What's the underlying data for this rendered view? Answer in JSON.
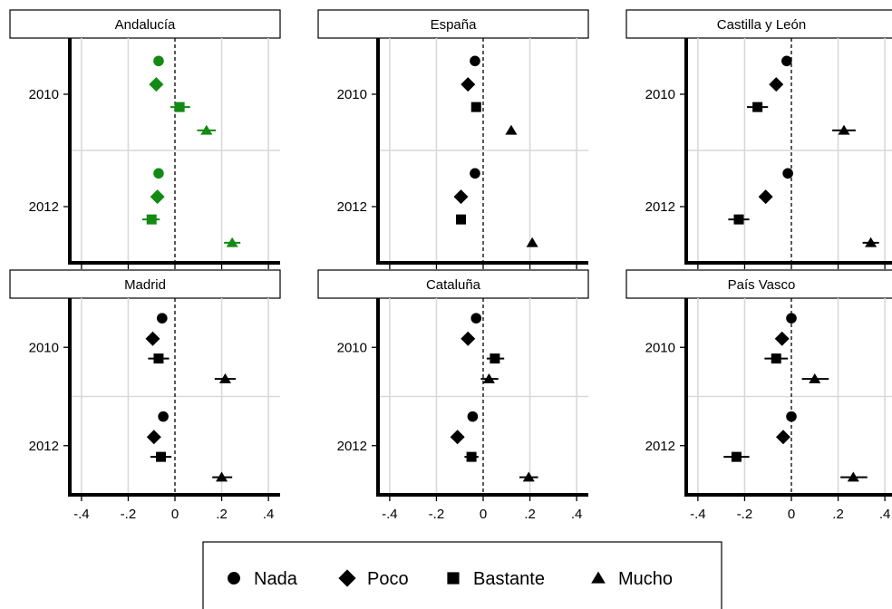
{
  "chart_data": {
    "type": "scatter",
    "subtype": "coefficient-plot-with-confidence-intervals",
    "xlim": [
      -0.45,
      0.45
    ],
    "x_ticks": [
      -0.4,
      -0.2,
      0,
      0.2,
      0.4
    ],
    "x_tick_labels": [
      "-.4",
      "-.2",
      "0",
      ".2",
      ".4"
    ],
    "y_categories": [
      "2010",
      "2012"
    ],
    "reference_line_x": 0,
    "grid": true,
    "legend_position": "bottom",
    "series_styles": [
      {
        "name": "Nada",
        "marker": "circle"
      },
      {
        "name": "Poco",
        "marker": "diamond"
      },
      {
        "name": "Bastante",
        "marker": "square"
      },
      {
        "name": "Mucho",
        "marker": "triangle"
      }
    ],
    "panels": [
      {
        "title": "Andalucía",
        "color": "#138A13",
        "points": [
          {
            "year": "2010",
            "series": "Nada",
            "est": -0.07,
            "lo": -0.075,
            "hi": -0.065
          },
          {
            "year": "2010",
            "series": "Poco",
            "est": -0.08,
            "lo": -0.085,
            "hi": -0.075
          },
          {
            "year": "2010",
            "series": "Bastante",
            "est": 0.02,
            "lo": -0.02,
            "hi": 0.065
          },
          {
            "year": "2010",
            "series": "Mucho",
            "est": 0.135,
            "lo": 0.095,
            "hi": 0.175
          },
          {
            "year": "2012",
            "series": "Nada",
            "est": -0.07,
            "lo": -0.075,
            "hi": -0.065
          },
          {
            "year": "2012",
            "series": "Poco",
            "est": -0.075,
            "lo": -0.08,
            "hi": -0.07
          },
          {
            "year": "2012",
            "series": "Bastante",
            "est": -0.1,
            "lo": -0.14,
            "hi": -0.065
          },
          {
            "year": "2012",
            "series": "Mucho",
            "est": 0.245,
            "lo": 0.21,
            "hi": 0.28
          }
        ]
      },
      {
        "title": "España",
        "color": "#000000",
        "points": [
          {
            "year": "2010",
            "series": "Nada",
            "est": -0.035,
            "lo": -0.04,
            "hi": -0.03
          },
          {
            "year": "2010",
            "series": "Poco",
            "est": -0.065,
            "lo": -0.07,
            "hi": -0.06
          },
          {
            "year": "2010",
            "series": "Bastante",
            "est": -0.03,
            "lo": -0.04,
            "hi": -0.02
          },
          {
            "year": "2010",
            "series": "Mucho",
            "est": 0.12,
            "lo": 0.11,
            "hi": 0.13
          },
          {
            "year": "2012",
            "series": "Nada",
            "est": -0.035,
            "lo": -0.04,
            "hi": -0.03
          },
          {
            "year": "2012",
            "series": "Poco",
            "est": -0.095,
            "lo": -0.1,
            "hi": -0.09
          },
          {
            "year": "2012",
            "series": "Bastante",
            "est": -0.095,
            "lo": -0.1,
            "hi": -0.09
          },
          {
            "year": "2012",
            "series": "Mucho",
            "est": 0.21,
            "lo": 0.205,
            "hi": 0.215
          }
        ]
      },
      {
        "title": "Castilla y León",
        "color": "#000000",
        "points": [
          {
            "year": "2010",
            "series": "Nada",
            "est": -0.02,
            "lo": -0.025,
            "hi": -0.015
          },
          {
            "year": "2010",
            "series": "Poco",
            "est": -0.065,
            "lo": -0.09,
            "hi": -0.04
          },
          {
            "year": "2010",
            "series": "Bastante",
            "est": -0.145,
            "lo": -0.19,
            "hi": -0.1
          },
          {
            "year": "2010",
            "series": "Mucho",
            "est": 0.225,
            "lo": 0.175,
            "hi": 0.275
          },
          {
            "year": "2012",
            "series": "Nada",
            "est": -0.015,
            "lo": -0.02,
            "hi": -0.01
          },
          {
            "year": "2012",
            "series": "Poco",
            "est": -0.11,
            "lo": -0.13,
            "hi": -0.09
          },
          {
            "year": "2012",
            "series": "Bastante",
            "est": -0.225,
            "lo": -0.27,
            "hi": -0.18
          },
          {
            "year": "2012",
            "series": "Mucho",
            "est": 0.34,
            "lo": 0.305,
            "hi": 0.375
          }
        ]
      },
      {
        "title": "Madrid",
        "color": "#000000",
        "points": [
          {
            "year": "2010",
            "series": "Nada",
            "est": -0.055,
            "lo": -0.06,
            "hi": -0.05
          },
          {
            "year": "2010",
            "series": "Poco",
            "est": -0.095,
            "lo": -0.11,
            "hi": -0.08
          },
          {
            "year": "2010",
            "series": "Bastante",
            "est": -0.07,
            "lo": -0.115,
            "hi": -0.025
          },
          {
            "year": "2010",
            "series": "Mucho",
            "est": 0.215,
            "lo": 0.17,
            "hi": 0.26
          },
          {
            "year": "2012",
            "series": "Nada",
            "est": -0.05,
            "lo": -0.055,
            "hi": -0.045
          },
          {
            "year": "2012",
            "series": "Poco",
            "est": -0.09,
            "lo": -0.105,
            "hi": -0.075
          },
          {
            "year": "2012",
            "series": "Bastante",
            "est": -0.06,
            "lo": -0.105,
            "hi": -0.015
          },
          {
            "year": "2012",
            "series": "Mucho",
            "est": 0.2,
            "lo": 0.16,
            "hi": 0.245
          }
        ]
      },
      {
        "title": "Cataluña",
        "color": "#000000",
        "points": [
          {
            "year": "2010",
            "series": "Nada",
            "est": -0.03,
            "lo": -0.035,
            "hi": -0.025
          },
          {
            "year": "2010",
            "series": "Poco",
            "est": -0.065,
            "lo": -0.075,
            "hi": -0.055
          },
          {
            "year": "2010",
            "series": "Bastante",
            "est": 0.05,
            "lo": 0.015,
            "hi": 0.09
          },
          {
            "year": "2010",
            "series": "Mucho",
            "est": 0.025,
            "lo": -0.01,
            "hi": 0.065
          },
          {
            "year": "2012",
            "series": "Nada",
            "est": -0.045,
            "lo": -0.05,
            "hi": -0.04
          },
          {
            "year": "2012",
            "series": "Poco",
            "est": -0.11,
            "lo": -0.12,
            "hi": -0.1
          },
          {
            "year": "2012",
            "series": "Bastante",
            "est": -0.05,
            "lo": -0.08,
            "hi": -0.02
          },
          {
            "year": "2012",
            "series": "Mucho",
            "est": 0.195,
            "lo": 0.155,
            "hi": 0.235
          }
        ]
      },
      {
        "title": "País Vasco",
        "color": "#000000",
        "points": [
          {
            "year": "2010",
            "series": "Nada",
            "est": 0.0,
            "lo": -0.005,
            "hi": 0.005
          },
          {
            "year": "2010",
            "series": "Poco",
            "est": -0.04,
            "lo": -0.065,
            "hi": -0.015
          },
          {
            "year": "2010",
            "series": "Bastante",
            "est": -0.065,
            "lo": -0.115,
            "hi": -0.015
          },
          {
            "year": "2010",
            "series": "Mucho",
            "est": 0.1,
            "lo": 0.045,
            "hi": 0.16
          },
          {
            "year": "2012",
            "series": "Nada",
            "est": 0.0,
            "lo": -0.005,
            "hi": 0.005
          },
          {
            "year": "2012",
            "series": "Poco",
            "est": -0.035,
            "lo": -0.06,
            "hi": -0.01
          },
          {
            "year": "2012",
            "series": "Bastante",
            "est": -0.235,
            "lo": -0.29,
            "hi": -0.18
          },
          {
            "year": "2012",
            "series": "Mucho",
            "est": 0.265,
            "lo": 0.21,
            "hi": 0.325
          }
        ]
      }
    ]
  }
}
